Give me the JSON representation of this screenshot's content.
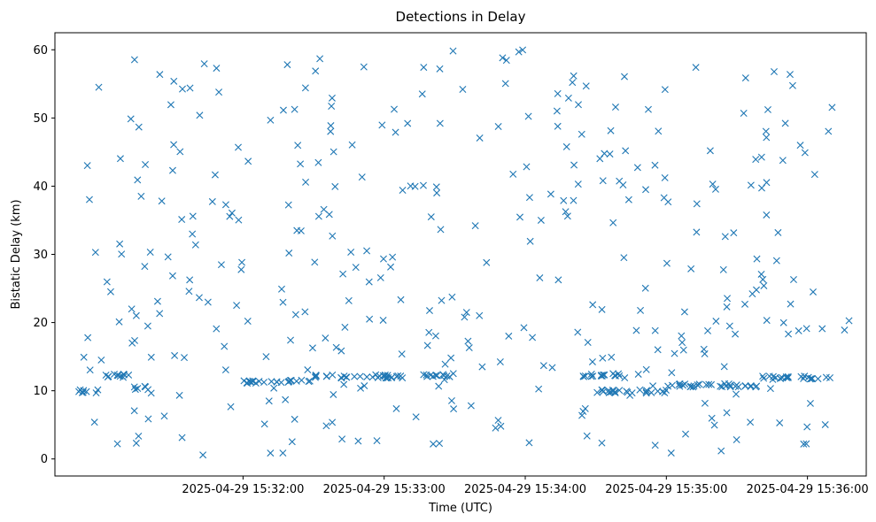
{
  "chart_data": {
    "type": "scatter",
    "title": "Detections in Delay",
    "xlabel": "Time (UTC)",
    "ylabel": "Bistatic Delay (km)",
    "x_start": "2025-04-29 15:30:50",
    "x_end": "2025-04-29 15:36:18",
    "xlim": [
      "2025-04-29 15:30:40",
      "2025-04-29 15:36:25"
    ],
    "ylim": [
      -2.5,
      62.5
    ],
    "x_ticks": [
      "2025-04-29 15:32:00",
      "2025-04-29 15:33:00",
      "2025-04-29 15:34:00",
      "2025-04-29 15:35:00",
      "2025-04-29 15:36:00"
    ],
    "y_ticks": [
      0,
      10,
      20,
      30,
      40,
      50,
      60
    ],
    "marker": "x",
    "color": "#1f77b4",
    "grid": false,
    "legend": "none",
    "point_count": 560,
    "clutter_y_range": [
      0.5,
      60
    ],
    "target_track": {
      "y_start": 9.8,
      "y_end": 12.3,
      "band_segments": [
        {
          "t_start": "2025-04-29 15:30:50",
          "t_end": "2025-04-29 15:31:00",
          "y": 9.9
        },
        {
          "t_start": "2025-04-29 15:31:00",
          "t_end": "2025-04-29 15:31:12",
          "y": 12.2
        },
        {
          "t_start": "2025-04-29 15:31:12",
          "t_end": "2025-04-29 15:31:20",
          "y": 10.4
        },
        {
          "t_start": "2025-04-29 15:32:00",
          "t_end": "2025-04-29 15:32:30",
          "y": 11.3
        },
        {
          "t_start": "2025-04-29 15:32:30",
          "t_end": "2025-04-29 15:33:10",
          "y": 12.1
        },
        {
          "t_start": "2025-04-29 15:33:15",
          "t_end": "2025-04-29 15:33:30",
          "y": 12.3
        },
        {
          "t_start": "2025-04-29 15:34:20",
          "t_end": "2025-04-29 15:34:40",
          "y": 12.3
        },
        {
          "t_start": "2025-04-29 15:34:30",
          "t_end": "2025-04-29 15:35:00",
          "y": 9.9
        },
        {
          "t_start": "2025-04-29 15:35:00",
          "t_end": "2025-04-29 15:35:40",
          "y": 10.8
        },
        {
          "t_start": "2025-04-29 15:35:40",
          "t_end": "2025-04-29 15:36:10",
          "y": 11.9
        }
      ]
    }
  }
}
